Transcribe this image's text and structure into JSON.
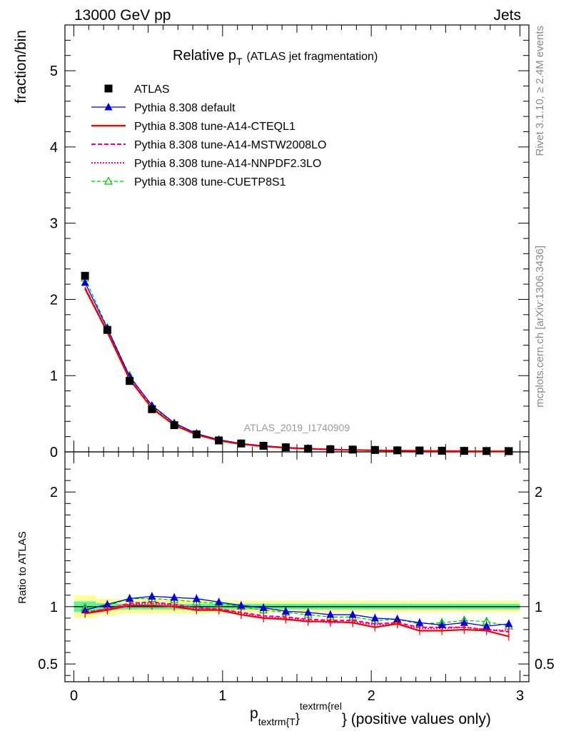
{
  "header": {
    "left": "13000 GeV pp",
    "right": "Jets"
  },
  "title": {
    "main": "Relative p",
    "main_sub": "T",
    "detail": "(ATLAS jet fragmentation)"
  },
  "side_labels": {
    "rivet": "Rivet 3.1.10, ≥ 2.4M events",
    "mcplots": "mcplots.cern.ch [arXiv:1306.3436]"
  },
  "watermark": "ATLAS_2019_I1740909",
  "x_axis": {
    "label_main": "p",
    "label_sub": "textrm{T",
    "label_sup": "textrm{rel",
    "label_close": "}",
    "label_close2": "}",
    "label_tail": " (positive values only)"
  },
  "colors": {
    "atlas": "#000000",
    "default": "#0000cc",
    "cteql1": "#ee0000",
    "mstw": "#ee0077",
    "nnpdf": "#ee00cc",
    "cuetp8s1": "#00bb00",
    "band_yellow": "#ffff99",
    "band_green": "#66ee99"
  },
  "chart_data": [
    {
      "type": "line",
      "panel": "main",
      "ylabel": "fraction/bin",
      "xlim": [
        -0.06,
        3.06
      ],
      "ylim": [
        0,
        5.6
      ],
      "yticks": [
        0,
        1,
        2,
        3,
        4,
        5
      ],
      "grid": false,
      "legend_position": "top-left",
      "x": [
        0.075,
        0.225,
        0.375,
        0.525,
        0.675,
        0.825,
        0.975,
        1.125,
        1.275,
        1.425,
        1.575,
        1.725,
        1.875,
        2.025,
        2.175,
        2.325,
        2.475,
        2.625,
        2.775,
        2.925
      ],
      "series": [
        {
          "name": "ATLAS",
          "key": "atlas",
          "values": [
            2.31,
            1.6,
            0.93,
            0.56,
            0.35,
            0.23,
            0.15,
            0.11,
            0.08,
            0.06,
            0.04,
            0.035,
            0.03,
            0.025,
            0.02,
            0.018,
            0.015,
            0.013,
            0.011,
            0.01
          ]
        },
        {
          "name": "Pythia 8.308 default",
          "key": "default",
          "values": [
            2.22,
            1.62,
            0.99,
            0.61,
            0.38,
            0.24,
            0.16,
            0.11,
            0.08,
            0.06,
            0.045,
            0.035,
            0.028,
            0.022,
            0.018,
            0.015,
            0.013,
            0.011,
            0.009,
            0.008
          ]
        },
        {
          "name": "Pythia 8.308 tune-A14-CTEQL1",
          "key": "cteql1",
          "values": [
            2.14,
            1.57,
            0.95,
            0.57,
            0.35,
            0.225,
            0.148,
            0.102,
            0.073,
            0.054,
            0.04,
            0.031,
            0.025,
            0.02,
            0.016,
            0.013,
            0.011,
            0.009,
            0.008,
            0.007
          ]
        },
        {
          "name": "Pythia 8.308 tune-A14-MSTW2008LO",
          "key": "mstw",
          "values": [
            2.15,
            1.58,
            0.96,
            0.58,
            0.355,
            0.228,
            0.15,
            0.104,
            0.074,
            0.055,
            0.041,
            0.032,
            0.026,
            0.021,
            0.017,
            0.014,
            0.012,
            0.01,
            0.008,
            0.007
          ]
        },
        {
          "name": "Pythia 8.308 tune-A14-NNPDF2.3LO",
          "key": "nnpdf",
          "values": [
            2.16,
            1.58,
            0.96,
            0.575,
            0.352,
            0.226,
            0.149,
            0.103,
            0.073,
            0.054,
            0.041,
            0.032,
            0.026,
            0.021,
            0.017,
            0.014,
            0.012,
            0.01,
            0.008,
            0.007
          ]
        },
        {
          "name": "Pythia 8.308 tune-CUETP8S1",
          "key": "cuetp8s1",
          "values": [
            2.28,
            1.63,
            1.0,
            0.6,
            0.37,
            0.24,
            0.155,
            0.108,
            0.077,
            0.057,
            0.043,
            0.033,
            0.027,
            0.022,
            0.018,
            0.015,
            0.013,
            0.011,
            0.009,
            0.008
          ]
        }
      ]
    },
    {
      "type": "line",
      "panel": "ratio",
      "ylabel": "Ratio to ATLAS",
      "xlim": [
        -0.06,
        3.06
      ],
      "ylim": [
        0.345,
        2.35
      ],
      "yticks": [
        0.5,
        1,
        2
      ],
      "xticks": [
        0,
        1,
        2,
        3
      ],
      "grid": false,
      "reference": 1,
      "band": {
        "x_edges": [
          0.0,
          0.15,
          0.3,
          0.45,
          0.6,
          0.75,
          0.9,
          1.05,
          1.2,
          1.35,
          1.5,
          1.65,
          1.8,
          1.95,
          2.1,
          2.25,
          2.4,
          2.55,
          2.7,
          2.85,
          3.0
        ],
        "total_halfwidth": [
          0.1,
          0.07,
          0.06,
          0.06,
          0.06,
          0.06,
          0.055,
          0.055,
          0.05,
          0.05,
          0.05,
          0.05,
          0.05,
          0.05,
          0.05,
          0.05,
          0.05,
          0.05,
          0.05,
          0.05
        ],
        "stat_halfwidth": [
          0.045,
          0.03,
          0.025,
          0.025,
          0.025,
          0.025,
          0.025,
          0.025,
          0.025,
          0.025,
          0.025,
          0.025,
          0.025,
          0.025,
          0.025,
          0.025,
          0.025,
          0.025,
          0.025,
          0.025
        ]
      },
      "x": [
        0.075,
        0.225,
        0.375,
        0.525,
        0.675,
        0.825,
        0.975,
        1.125,
        1.275,
        1.425,
        1.575,
        1.725,
        1.875,
        2.025,
        2.175,
        2.325,
        2.475,
        2.625,
        2.775,
        2.925
      ],
      "series": [
        {
          "name": "Pythia 8.308 default",
          "key": "default",
          "values": [
            0.97,
            1.02,
            1.07,
            1.09,
            1.08,
            1.07,
            1.04,
            1.01,
            0.99,
            0.96,
            0.95,
            0.93,
            0.93,
            0.9,
            0.89,
            0.86,
            0.84,
            0.86,
            0.83,
            0.85
          ]
        },
        {
          "name": "Pythia 8.308 tune-A14-CTEQL1",
          "key": "cteql1",
          "values": [
            0.94,
            0.97,
            1.01,
            1.01,
            1.0,
            0.97,
            0.97,
            0.93,
            0.9,
            0.89,
            0.87,
            0.87,
            0.86,
            0.82,
            0.85,
            0.79,
            0.79,
            0.8,
            0.79,
            0.74
          ]
        },
        {
          "name": "Pythia 8.308 tune-A14-MSTW2008LO",
          "key": "mstw",
          "values": [
            0.95,
            0.98,
            1.03,
            1.04,
            1.02,
            0.99,
            0.98,
            0.95,
            0.92,
            0.91,
            0.89,
            0.88,
            0.88,
            0.85,
            0.86,
            0.82,
            0.82,
            0.82,
            0.8,
            0.78
          ]
        },
        {
          "name": "Pythia 8.308 tune-A14-NNPDF2.3LO",
          "key": "nnpdf",
          "values": [
            0.95,
            0.98,
            1.02,
            1.03,
            1.01,
            0.98,
            0.98,
            0.94,
            0.91,
            0.9,
            0.88,
            0.86,
            0.87,
            0.84,
            0.85,
            0.81,
            0.81,
            0.82,
            0.8,
            0.79
          ]
        },
        {
          "name": "Pythia 8.308 tune-CUETP8S1",
          "key": "cuetp8s1",
          "values": [
            0.99,
            1.01,
            1.07,
            1.07,
            1.06,
            1.04,
            1.03,
            1.0,
            0.97,
            0.95,
            0.93,
            0.91,
            0.91,
            0.88,
            0.89,
            0.85,
            0.86,
            0.88,
            0.87,
            0.83
          ]
        }
      ]
    }
  ]
}
